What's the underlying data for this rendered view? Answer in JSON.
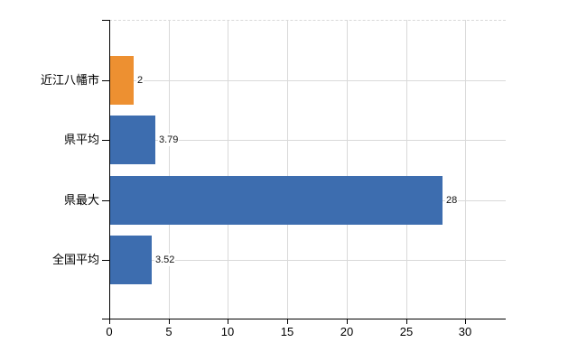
{
  "chart_data": {
    "type": "bar",
    "orientation": "horizontal",
    "title": "",
    "xlabel": "",
    "ylabel": "",
    "categories": [
      "近江八幡市",
      "県平均",
      "県最大",
      "全国平均"
    ],
    "values": [
      2,
      3.79,
      28,
      3.52
    ],
    "value_labels": [
      "2",
      "3.79",
      "28",
      "3.52"
    ],
    "series": [
      {
        "name": "",
        "values": [
          2,
          3.79,
          28,
          3.52
        ],
        "bar_colors": [
          "#ED9031",
          "#3D6DAF",
          "#3D6DAF",
          "#3D6DAF"
        ]
      }
    ],
    "xticks": [
      0,
      5,
      10,
      15,
      20,
      25,
      30
    ],
    "xtick_labels": [
      "0",
      "5",
      "10",
      "15",
      "20",
      "25",
      "30"
    ],
    "xlim": [
      0,
      33.4
    ],
    "grid": true,
    "legend_position": "none",
    "colors": {
      "highlight_bar": "#ED9031",
      "default_bar": "#3D6DAF",
      "axis": "#000000",
      "gridline": "#D9D9D9",
      "text": "#000000",
      "background": "#FFFFFF"
    }
  }
}
